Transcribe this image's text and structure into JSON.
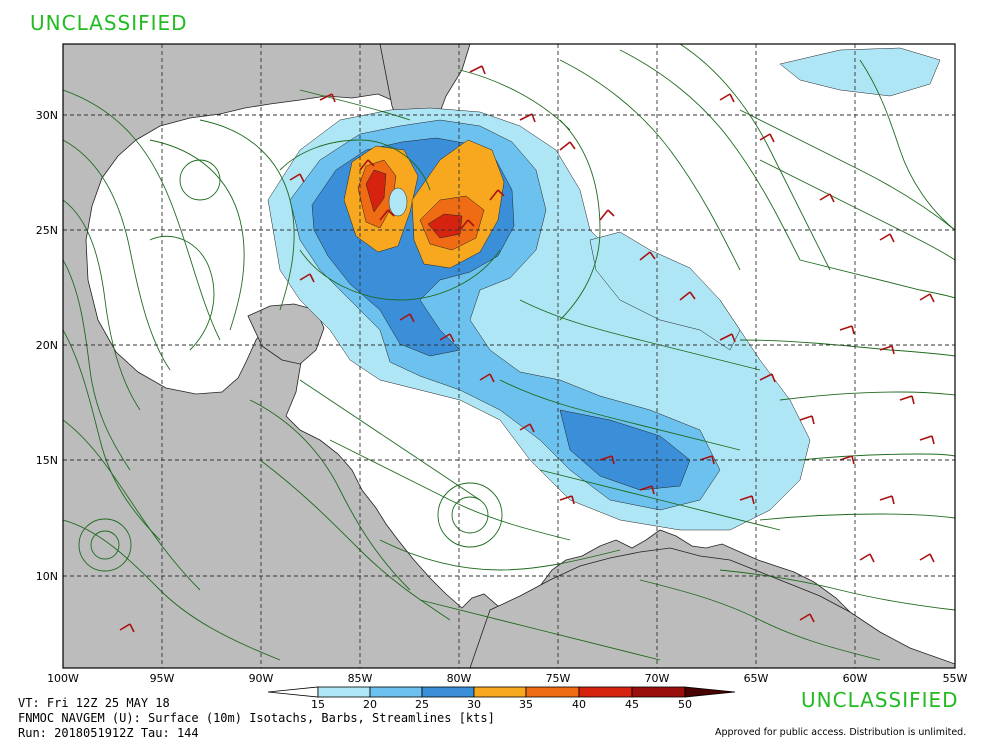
{
  "banners": {
    "top": "UNCLASSIFIED",
    "bottom": "UNCLASSIFIED"
  },
  "map": {
    "region": "Gulf of Mexico / Caribbean",
    "lon_labels": [
      "100W",
      "95W",
      "90W",
      "85W",
      "80W",
      "75W",
      "70W",
      "65W",
      "60W",
      "55W"
    ],
    "lat_labels": [
      "30N",
      "25N",
      "20N",
      "15N",
      "10N"
    ],
    "colors": {
      "land": "#bcbcbc",
      "ocean": "#ffffff",
      "streamlines": "#1f6b1f",
      "barbs": "#aa1111",
      "grid": "#333333"
    }
  },
  "colorbar": {
    "ticks": [
      "15",
      "20",
      "25",
      "30",
      "35",
      "40",
      "45",
      "50"
    ],
    "colors": [
      "#ffffff",
      "#aee6f6",
      "#6cc1ee",
      "#3a8fd8",
      "#f7a81e",
      "#ef6b14",
      "#d6230f",
      "#9a0e0e",
      "#4a0303"
    ]
  },
  "info": {
    "line1": "VT: Fri 12Z 25 MAY 18",
    "line2": "FNMOC NAVGEM (U): Surface (10m) Isotachs, Barbs, Streamlines [kts]",
    "line3": "Run: 2018051912Z Tau: 144"
  },
  "footer": {
    "approval": "Approved for public access. Distribution is unlimited."
  }
}
